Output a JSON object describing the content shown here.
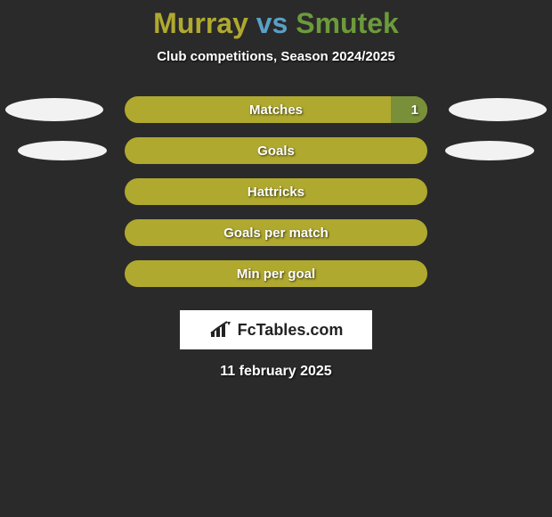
{
  "title": {
    "player1": "Murray",
    "vs": "vs",
    "player2": "Smutek",
    "player1_color": "#b0a92f",
    "vs_color": "#5aa0c8",
    "player2_color": "#6d9a3b"
  },
  "subtitle": "Club competitions, Season 2024/2025",
  "track_color": "#b0a92f",
  "fill_color": "#7a8f3a",
  "background_color": "#2a2a2a",
  "rows": [
    {
      "label": "Matches",
      "left_value": "",
      "right_value": "1",
      "fill_pct": 12,
      "ellipse_left": true,
      "ellipse_right": true,
      "ellipse_small": false
    },
    {
      "label": "Goals",
      "left_value": "",
      "right_value": "",
      "fill_pct": 0,
      "ellipse_left": true,
      "ellipse_right": true,
      "ellipse_small": true
    },
    {
      "label": "Hattricks",
      "left_value": "",
      "right_value": "",
      "fill_pct": 0,
      "ellipse_left": false,
      "ellipse_right": false,
      "ellipse_small": false
    },
    {
      "label": "Goals per match",
      "left_value": "",
      "right_value": "",
      "fill_pct": 0,
      "ellipse_left": false,
      "ellipse_right": false,
      "ellipse_small": false
    },
    {
      "label": "Min per goal",
      "left_value": "",
      "right_value": "",
      "fill_pct": 0,
      "ellipse_left": false,
      "ellipse_right": false,
      "ellipse_small": false
    }
  ],
  "logo_text": "FcTables.com",
  "date": "11 february 2025"
}
